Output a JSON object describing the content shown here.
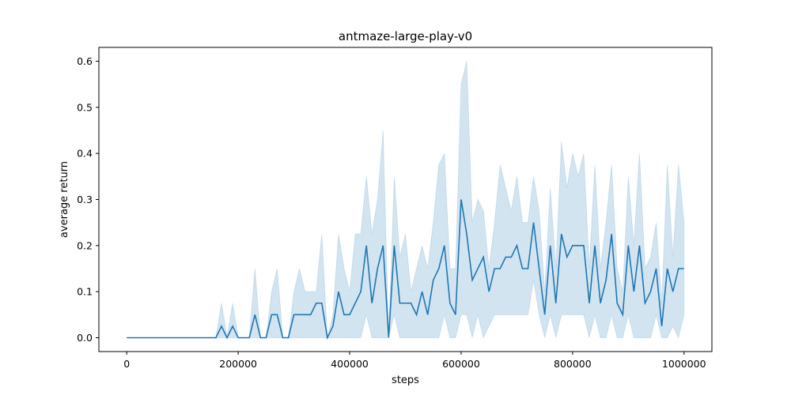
{
  "chart_data": {
    "type": "line",
    "title": "antmaze-large-play-v0",
    "xlabel": "steps",
    "ylabel": "average return",
    "xlim": [
      -50000,
      1050000
    ],
    "ylim": [
      -0.03,
      0.63
    ],
    "xticks": [
      0,
      200000,
      400000,
      600000,
      800000,
      1000000
    ],
    "xtick_labels": [
      "0",
      "200000",
      "400000",
      "600000",
      "800000",
      "1000000"
    ],
    "yticks": [
      0.0,
      0.1,
      0.2,
      0.3,
      0.4,
      0.5,
      0.6
    ],
    "ytick_labels": [
      "0.0",
      "0.1",
      "0.2",
      "0.3",
      "0.4",
      "0.5",
      "0.6"
    ],
    "grid": false,
    "colors": {
      "line": "#1f77b4",
      "band": "#1f77b4",
      "band_opacity": 0.2
    },
    "series": [
      {
        "x": [
          0,
          10000,
          20000,
          30000,
          40000,
          50000,
          60000,
          70000,
          80000,
          90000,
          100000,
          110000,
          120000,
          130000,
          140000,
          150000,
          160000,
          170000,
          180000,
          190000,
          200000,
          210000,
          220000,
          230000,
          240000,
          250000,
          260000,
          270000,
          280000,
          290000,
          300000,
          310000,
          320000,
          330000,
          340000,
          350000,
          360000,
          370000,
          380000,
          390000,
          400000,
          410000,
          420000,
          430000,
          440000,
          450000,
          460000,
          470000,
          480000,
          490000,
          500000,
          510000,
          520000,
          530000,
          540000,
          550000,
          560000,
          570000,
          580000,
          590000,
          600000,
          610000,
          620000,
          630000,
          640000,
          650000,
          660000,
          670000,
          680000,
          690000,
          700000,
          710000,
          720000,
          730000,
          740000,
          750000,
          760000,
          770000,
          780000,
          790000,
          800000,
          810000,
          820000,
          830000,
          840000,
          850000,
          860000,
          870000,
          880000,
          890000,
          900000,
          910000,
          920000,
          930000,
          940000,
          950000,
          960000,
          970000,
          980000,
          990000,
          1000000
        ],
        "mean": [
          0,
          0,
          0,
          0,
          0,
          0,
          0,
          0,
          0,
          0,
          0,
          0,
          0,
          0,
          0,
          0,
          0,
          0.025,
          0,
          0.025,
          0,
          0,
          0,
          0.05,
          0,
          0,
          0.05,
          0.05,
          0,
          0,
          0.05,
          0.05,
          0.05,
          0.05,
          0.075,
          0.075,
          0,
          0.025,
          0.1,
          0.05,
          0.05,
          0.075,
          0.1,
          0.2,
          0.075,
          0.15,
          0.2,
          0,
          0.2,
          0.075,
          0.075,
          0.075,
          0.05,
          0.1,
          0.05,
          0.125,
          0.15,
          0.2,
          0.075,
          0.05,
          0.3,
          0.225,
          0.125,
          0.15,
          0.175,
          0.1,
          0.15,
          0.15,
          0.175,
          0.175,
          0.2,
          0.15,
          0.15,
          0.25,
          0.15,
          0.05,
          0.2,
          0.075,
          0.225,
          0.175,
          0.2,
          0.2,
          0.2,
          0.075,
          0.2,
          0.075,
          0.125,
          0.225,
          0.075,
          0.05,
          0.2,
          0.1,
          0.2,
          0.075,
          0.1,
          0.15,
          0.025,
          0.15,
          0.1,
          0.15,
          0.15
        ],
        "lower": [
          0,
          0,
          0,
          0,
          0,
          0,
          0,
          0,
          0,
          0,
          0,
          0,
          0,
          0,
          0,
          0,
          0,
          0,
          0,
          0,
          0,
          0,
          0,
          0,
          0,
          0,
          0,
          0,
          0,
          0,
          0,
          0,
          0,
          0,
          0,
          0,
          0,
          0,
          0,
          0,
          0,
          0,
          0,
          0.05,
          0,
          0,
          0,
          0,
          0.05,
          0,
          0,
          0,
          0,
          0,
          0,
          0,
          0,
          0.05,
          0,
          0,
          0.05,
          0.05,
          0,
          0.05,
          0,
          0.025,
          0.05,
          0.05,
          0.05,
          0.05,
          0.05,
          0.05,
          0.05,
          0.125,
          0.05,
          0,
          0.05,
          0,
          0.05,
          0.05,
          0.05,
          0.05,
          0.05,
          0,
          0.05,
          0,
          0,
          0.05,
          0,
          0,
          0.05,
          0,
          0,
          0,
          0,
          0.05,
          0,
          0,
          0.025,
          0,
          0.05
        ],
        "upper": [
          0,
          0,
          0,
          0,
          0,
          0,
          0,
          0,
          0,
          0,
          0,
          0,
          0,
          0,
          0,
          0,
          0,
          0.075,
          0,
          0.075,
          0,
          0,
          0,
          0.15,
          0,
          0,
          0.1,
          0.15,
          0,
          0,
          0.1,
          0.15,
          0.1,
          0.1,
          0.1,
          0.225,
          0,
          0.05,
          0.225,
          0.15,
          0.1,
          0.225,
          0.225,
          0.35,
          0.225,
          0.3,
          0.45,
          0,
          0.35,
          0.175,
          0.225,
          0.1,
          0.15,
          0.2,
          0.15,
          0.25,
          0.375,
          0.4,
          0.15,
          0.15,
          0.55,
          0.6,
          0.25,
          0.3,
          0.275,
          0.15,
          0.25,
          0.375,
          0.325,
          0.275,
          0.35,
          0.25,
          0.25,
          0.35,
          0.275,
          0.1,
          0.325,
          0.15,
          0.425,
          0.325,
          0.4,
          0.35,
          0.4,
          0.15,
          0.375,
          0.15,
          0.25,
          0.375,
          0.15,
          0.1,
          0.35,
          0.2,
          0.4,
          0.15,
          0.175,
          0.25,
          0.075,
          0.375,
          0.175,
          0.375,
          0.25
        ]
      }
    ]
  }
}
